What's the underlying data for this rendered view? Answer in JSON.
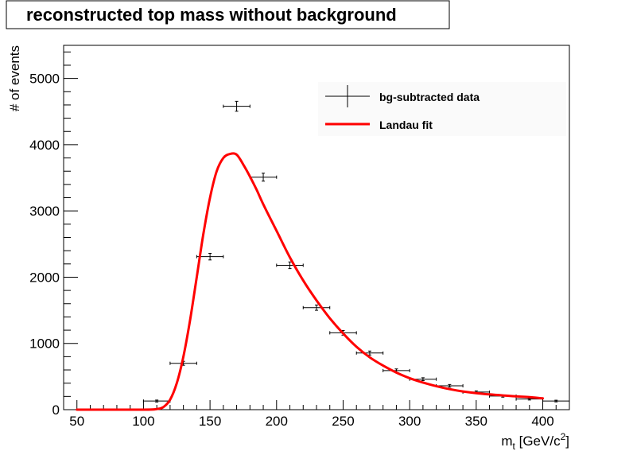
{
  "chart_data": {
    "type": "scatter",
    "title": "reconstructed top mass without background",
    "xlabel": {
      "main": "m",
      "subscript": "t",
      "unit_open": " [GeV/c",
      "superscript": "2",
      "unit_close": "]"
    },
    "ylabel": "# of events",
    "xlim": [
      40,
      420
    ],
    "ylim": [
      0,
      5500
    ],
    "x_ticks": [
      50,
      100,
      150,
      200,
      250,
      300,
      350,
      400
    ],
    "y_ticks": [
      0,
      1000,
      2000,
      3000,
      4000,
      5000
    ],
    "x_minor_step": 10,
    "y_minor_step": 200,
    "grid": false,
    "legend_position": "top-right",
    "series": [
      {
        "name": "bg-subtracted data",
        "kind": "points-with-errors",
        "color": "#000000",
        "x_halfwidth": 10,
        "points": [
          {
            "x": 110,
            "y": 130,
            "yerr": 15
          },
          {
            "x": 130,
            "y": 700,
            "yerr": 30
          },
          {
            "x": 150,
            "y": 2310,
            "yerr": 50
          },
          {
            "x": 170,
            "y": 4580,
            "yerr": 75
          },
          {
            "x": 190,
            "y": 3510,
            "yerr": 60
          },
          {
            "x": 210,
            "y": 2180,
            "yerr": 50
          },
          {
            "x": 230,
            "y": 1540,
            "yerr": 40
          },
          {
            "x": 250,
            "y": 1160,
            "yerr": 35
          },
          {
            "x": 270,
            "y": 855,
            "yerr": 30
          },
          {
            "x": 290,
            "y": 590,
            "yerr": 25
          },
          {
            "x": 310,
            "y": 460,
            "yerr": 22
          },
          {
            "x": 330,
            "y": 360,
            "yerr": 20
          },
          {
            "x": 350,
            "y": 265,
            "yerr": 18
          },
          {
            "x": 370,
            "y": 205,
            "yerr": 16
          },
          {
            "x": 390,
            "y": 160,
            "yerr": 14
          },
          {
            "x": 410,
            "y": 130,
            "yerr": 13
          }
        ]
      },
      {
        "name": "Landau fit",
        "kind": "line",
        "color": "#ff0000",
        "x": [
          50,
          100,
          110,
          115,
          120,
          125,
          130,
          135,
          140,
          145,
          150,
          155,
          160,
          165,
          170,
          175,
          180,
          185,
          190,
          200,
          210,
          220,
          230,
          240,
          250,
          260,
          270,
          280,
          290,
          300,
          310,
          320,
          330,
          340,
          350,
          360,
          370,
          380,
          390,
          400
        ],
        "y": [
          0,
          0,
          10,
          40,
          150,
          400,
          800,
          1350,
          2000,
          2650,
          3200,
          3600,
          3800,
          3860,
          3850,
          3700,
          3520,
          3320,
          3100,
          2700,
          2300,
          1950,
          1650,
          1380,
          1150,
          950,
          790,
          665,
          560,
          475,
          410,
          355,
          310,
          275,
          250,
          230,
          215,
          200,
          190,
          170
        ]
      }
    ]
  }
}
